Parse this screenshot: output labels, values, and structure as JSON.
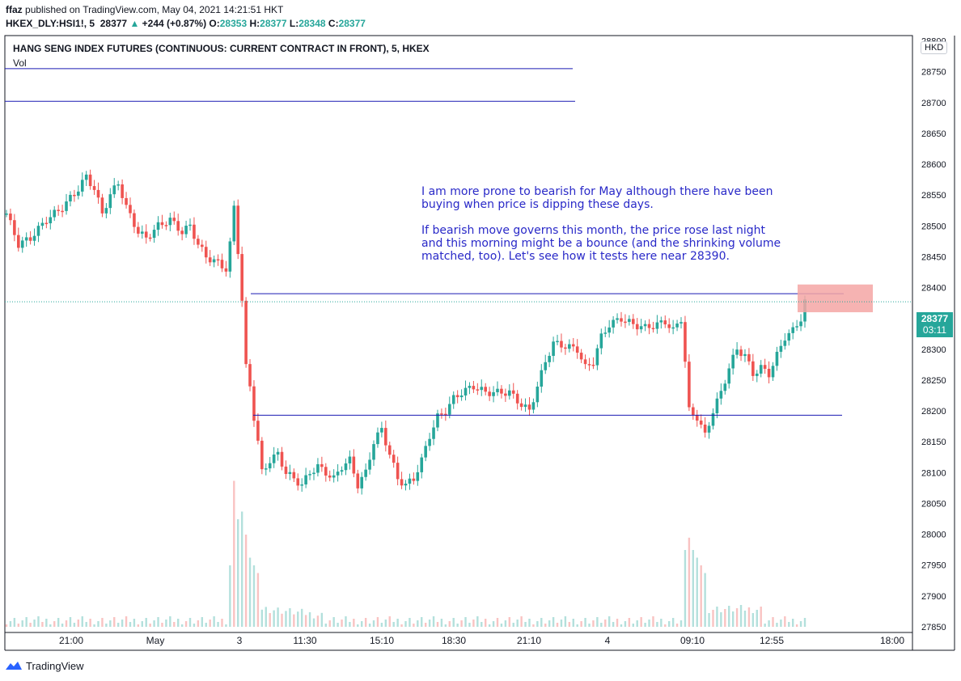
{
  "header": {
    "publisher": "ffaz",
    "published_text": "published on TradingView.com, May 04, 2021 14:21:51 HKT",
    "symbol": "HKEX_DLY:HSI1!, 5",
    "last": "28377",
    "change_arrow": "▲",
    "change": "+244 (+0.87%)",
    "o_label": "O:",
    "o": "28353",
    "h_label": "H:",
    "h": "28377",
    "l_label": "L:",
    "l": "28348",
    "c_label": "C:",
    "c": "28377"
  },
  "chart_title": "HANG SENG INDEX FUTURES (CONTINUOUS: CURRENT CONTRACT IN FRONT), 5, HKEX",
  "volume_label": "Vol",
  "currency": "HKD",
  "price_tag": {
    "value": "28377",
    "timer": "03:11"
  },
  "annotation": {
    "para1": "I am more prone to bearish for May although there have been buying when price is dipping these days.",
    "para2": "If bearish move governs this month, the price rose last night and this morning might be a bounce (and the shrinking volume matched, too). Let's see how it tests here near 28390."
  },
  "footer": {
    "brand": "TradingView"
  },
  "colors": {
    "up": "#26a69a",
    "down": "#ef5350",
    "line": "#1a1ab3",
    "zone": "#f4a6a4",
    "grid": "#f0f3fa"
  },
  "chart_data": {
    "type": "candlestick",
    "y_ticks": [
      27850,
      27900,
      27950,
      28000,
      28050,
      28100,
      28150,
      28200,
      28250,
      28300,
      28350,
      28400,
      28450,
      28500,
      28550,
      28600,
      28650,
      28700,
      28750,
      28800
    ],
    "x_ticks": [
      "21:00",
      "May",
      "3",
      "11:30",
      "15:10",
      "18:30",
      "21:10",
      "4",
      "09:10",
      "12:55",
      "18:00"
    ],
    "ylim": [
      27850,
      28850
    ],
    "last_price": 28377,
    "horizontal_lines": [
      28755,
      28702,
      28390,
      28193
    ],
    "resistance_zone": [
      28360,
      28405
    ],
    "price_path": [
      [
        0,
        28520
      ],
      [
        3,
        28470
      ],
      [
        6,
        28480
      ],
      [
        10,
        28510
      ],
      [
        14,
        28530
      ],
      [
        18,
        28560
      ],
      [
        20,
        28580
      ],
      [
        22,
        28560
      ],
      [
        24,
        28520
      ],
      [
        26,
        28550
      ],
      [
        28,
        28570
      ],
      [
        30,
        28530
      ],
      [
        33,
        28490
      ],
      [
        35,
        28480
      ],
      [
        38,
        28500
      ],
      [
        41,
        28510
      ],
      [
        44,
        28490
      ],
      [
        46,
        28500
      ],
      [
        48,
        28470
      ],
      [
        50,
        28450
      ],
      [
        53,
        28440
      ],
      [
        55,
        28430
      ],
      [
        56,
        28470
      ],
      [
        57,
        28530
      ],
      [
        58,
        28460
      ],
      [
        59,
        28380
      ],
      [
        60,
        28270
      ],
      [
        61,
        28240
      ],
      [
        62,
        28190
      ],
      [
        63,
        28150
      ],
      [
        64,
        28100
      ],
      [
        66,
        28120
      ],
      [
        68,
        28130
      ],
      [
        70,
        28100
      ],
      [
        72,
        28090
      ],
      [
        74,
        28080
      ],
      [
        76,
        28100
      ],
      [
        78,
        28110
      ],
      [
        80,
        28100
      ],
      [
        82,
        28090
      ],
      [
        84,
        28110
      ],
      [
        86,
        28120
      ],
      [
        88,
        28080
      ],
      [
        90,
        28100
      ],
      [
        92,
        28150
      ],
      [
        94,
        28170
      ],
      [
        96,
        28130
      ],
      [
        98,
        28090
      ],
      [
        100,
        28080
      ],
      [
        102,
        28090
      ],
      [
        104,
        28120
      ],
      [
        106,
        28160
      ],
      [
        108,
        28190
      ],
      [
        110,
        28200
      ],
      [
        112,
        28220
      ],
      [
        114,
        28230
      ],
      [
        117,
        28240
      ],
      [
        120,
        28230
      ],
      [
        123,
        28230
      ],
      [
        126,
        28230
      ],
      [
        129,
        28210
      ],
      [
        131,
        28200
      ],
      [
        133,
        28240
      ],
      [
        135,
        28280
      ],
      [
        137,
        28310
      ],
      [
        140,
        28305
      ],
      [
        143,
        28300
      ],
      [
        145,
        28270
      ],
      [
        147,
        28280
      ],
      [
        149,
        28320
      ],
      [
        151,
        28340
      ],
      [
        154,
        28350
      ],
      [
        157,
        28340
      ],
      [
        160,
        28335
      ],
      [
        163,
        28340
      ],
      [
        165,
        28345
      ],
      [
        167,
        28330
      ],
      [
        169,
        28350
      ],
      [
        170,
        28280
      ],
      [
        171,
        28200
      ],
      [
        173,
        28190
      ],
      [
        175,
        28160
      ],
      [
        177,
        28200
      ],
      [
        179,
        28230
      ],
      [
        181,
        28270
      ],
      [
        183,
        28300
      ],
      [
        185,
        28290
      ],
      [
        187,
        28260
      ],
      [
        189,
        28270
      ],
      [
        191,
        28260
      ],
      [
        193,
        28290
      ],
      [
        195,
        28320
      ],
      [
        197,
        28330
      ],
      [
        199,
        28350
      ],
      [
        200,
        28377
      ]
    ],
    "volume_spikes": [
      [
        56,
        0.4
      ],
      [
        57,
        0.95
      ],
      [
        58,
        0.7
      ],
      [
        59,
        0.75
      ],
      [
        60,
        0.6
      ],
      [
        61,
        0.45
      ],
      [
        62,
        0.4
      ],
      [
        63,
        0.35
      ],
      [
        170,
        0.5
      ],
      [
        171,
        0.58
      ],
      [
        172,
        0.5
      ],
      [
        173,
        0.45
      ],
      [
        174,
        0.4
      ],
      [
        175,
        0.35
      ]
    ]
  }
}
